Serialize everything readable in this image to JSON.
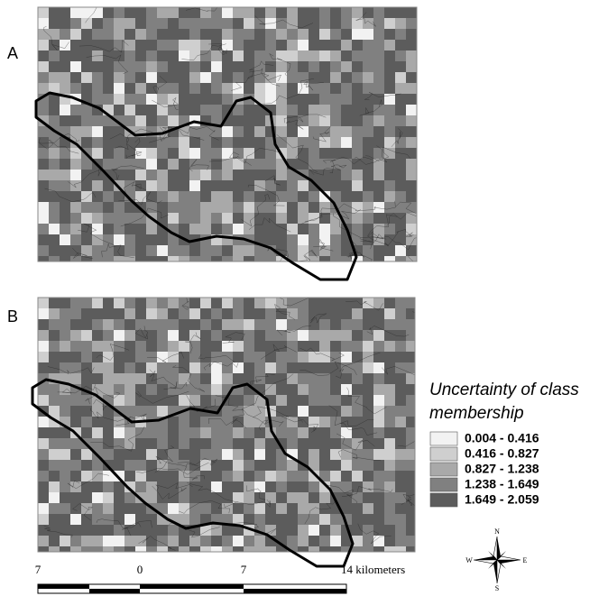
{
  "panels": [
    {
      "label": "A"
    },
    {
      "label": "B"
    }
  ],
  "legend": {
    "title_lines": [
      "Uncertainty of class",
      "membership"
    ],
    "items": [
      {
        "label": "0.004 - 0.416",
        "color": "#f2f2f2"
      },
      {
        "label": "0.416 - 0.827",
        "color": "#cfcfcf"
      },
      {
        "label": "0.827 - 1.238",
        "color": "#a9a9a9"
      },
      {
        "label": "1.238 - 1.649",
        "color": "#808080"
      },
      {
        "label": "1.649 - 2.059",
        "color": "#5c5c5c"
      }
    ]
  },
  "scale_bar": {
    "labels": [
      "7",
      "0",
      "7",
      "14 kilometers"
    ]
  },
  "compass": {
    "n": "N",
    "s": "S",
    "e": "E",
    "w": "W"
  }
}
